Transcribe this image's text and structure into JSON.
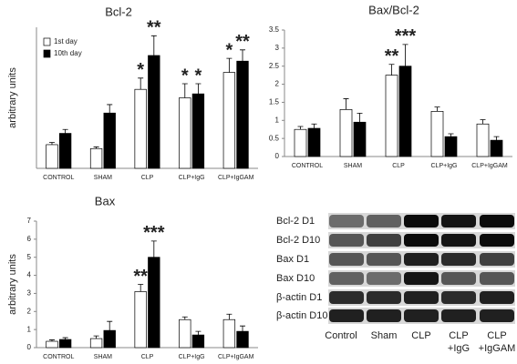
{
  "chart_data": [
    {
      "type": "bar",
      "title": "Bcl-2",
      "y_label": "arbitrary units",
      "categories": [
        "CONTROL",
        "SHAM",
        "CLP",
        "CLP+IgG",
        "CLP+IgGAM"
      ],
      "ylim": [
        0,
        2.5
      ],
      "legend": "upper-left",
      "series": [
        {
          "name": "1st day",
          "color": "#ffffff",
          "values": [
            0.42,
            0.35,
            1.4,
            1.25,
            1.7
          ],
          "errors": [
            0.04,
            0.03,
            0.2,
            0.25,
            0.25
          ],
          "significance": [
            null,
            null,
            "*",
            "*",
            "*"
          ]
        },
        {
          "name": "10th day",
          "color": "#000000",
          "values": [
            0.62,
            0.98,
            2.0,
            1.32,
            1.9
          ],
          "errors": [
            0.07,
            0.15,
            0.35,
            0.18,
            0.2
          ],
          "significance": [
            null,
            null,
            "**",
            "*",
            "**"
          ]
        }
      ]
    },
    {
      "type": "bar",
      "title": "Bax/Bcl-2",
      "categories": [
        "CONTROL",
        "SHAM",
        "CLP",
        "CLP+IgG",
        "CLP+IgGAM"
      ],
      "ylim": [
        0,
        3.5
      ],
      "yticks": [
        0,
        0.5,
        1,
        1.5,
        2,
        2.5,
        3,
        3.5
      ],
      "series": [
        {
          "color": "#ffffff",
          "values": [
            0.75,
            1.3,
            2.25,
            1.25,
            0.9
          ],
          "errors": [
            0.08,
            0.3,
            0.3,
            0.12,
            0.12
          ],
          "significance": [
            null,
            null,
            "**",
            null,
            null
          ]
        },
        {
          "color": "#000000",
          "values": [
            0.78,
            0.95,
            2.5,
            0.55,
            0.45
          ],
          "errors": [
            0.12,
            0.25,
            0.6,
            0.08,
            0.1
          ],
          "significance": [
            null,
            null,
            "***",
            null,
            null
          ]
        }
      ]
    },
    {
      "type": "bar",
      "title": "Bax",
      "y_label": "arbitrary units",
      "categories": [
        "CONTROL",
        "SHAM",
        "CLP",
        "CLP+IgG",
        "CLP+IgGAM"
      ],
      "ylim": [
        0,
        7
      ],
      "yticks": [
        0,
        1,
        2,
        3,
        4,
        5,
        6,
        7
      ],
      "series": [
        {
          "color": "#ffffff",
          "values": [
            0.35,
            0.5,
            3.1,
            1.55,
            1.55
          ],
          "errors": [
            0.08,
            0.15,
            0.4,
            0.15,
            0.3
          ],
          "significance": [
            null,
            null,
            "**",
            null,
            null
          ]
        },
        {
          "color": "#000000",
          "values": [
            0.45,
            0.95,
            5.0,
            0.7,
            0.9
          ],
          "errors": [
            0.1,
            0.5,
            0.9,
            0.2,
            0.3
          ],
          "significance": [
            null,
            null,
            "***",
            null,
            null
          ]
        }
      ]
    }
  ],
  "blot": {
    "rows": [
      "Bcl-2 D1",
      "Bcl-2 D10",
      "Bax D1",
      "Bax D10",
      "β-actin D1",
      "β-actin D10"
    ],
    "columns": [
      [
        "Control"
      ],
      [
        "Sham"
      ],
      [
        "CLP"
      ],
      [
        "CLP",
        "+IgG"
      ],
      [
        "CLP",
        "+IgGAM"
      ]
    ]
  }
}
